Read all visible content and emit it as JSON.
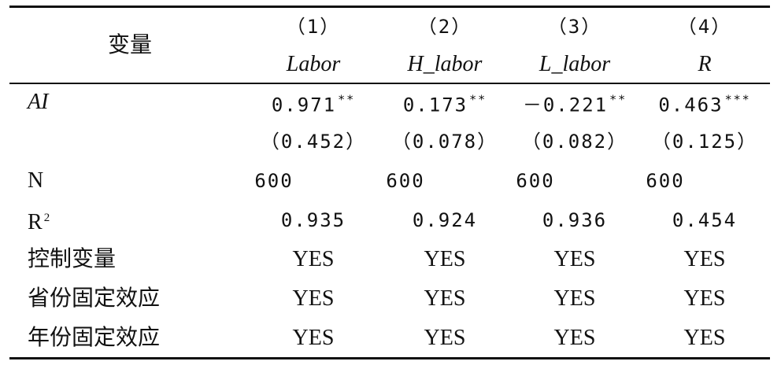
{
  "table": {
    "header": {
      "variable": "变量",
      "columns": [
        {
          "number": "（1）",
          "name": "Labor"
        },
        {
          "number": "（2）",
          "name": "H_labor"
        },
        {
          "number": "（3）",
          "name": "L_labor"
        },
        {
          "number": "（4）",
          "name": "R"
        }
      ]
    },
    "rows": [
      {
        "label": "AI",
        "cells": [
          {
            "value": "0.971",
            "stars": "**"
          },
          {
            "value": "0.173",
            "stars": "**"
          },
          {
            "value": "－0.221",
            "stars": "**"
          },
          {
            "value": "0.463",
            "stars": "***"
          }
        ]
      },
      {
        "label": null,
        "cells": [
          {
            "value": "（0.452）"
          },
          {
            "value": "（0.078）"
          },
          {
            "value": "（0.082）"
          },
          {
            "value": "（0.125）"
          }
        ]
      },
      {
        "label": "N",
        "cells": [
          {
            "value": "600"
          },
          {
            "value": "600"
          },
          {
            "value": "600"
          },
          {
            "value": "600"
          }
        ]
      },
      {
        "label": "R",
        "label_sup": "2",
        "cells": [
          {
            "value": "0.935"
          },
          {
            "value": "0.924"
          },
          {
            "value": "0.936"
          },
          {
            "value": "0.454"
          }
        ]
      },
      {
        "label": "控制变量",
        "cells": [
          {
            "value": "YES"
          },
          {
            "value": "YES"
          },
          {
            "value": "YES"
          },
          {
            "value": "YES"
          }
        ]
      },
      {
        "label": "省份固定效应",
        "cells": [
          {
            "value": "YES"
          },
          {
            "value": "YES"
          },
          {
            "value": "YES"
          },
          {
            "value": "YES"
          }
        ]
      },
      {
        "label": "年份固定效应",
        "cells": [
          {
            "value": "YES"
          },
          {
            "value": "YES"
          },
          {
            "value": "YES"
          },
          {
            "value": "YES"
          }
        ]
      }
    ]
  }
}
